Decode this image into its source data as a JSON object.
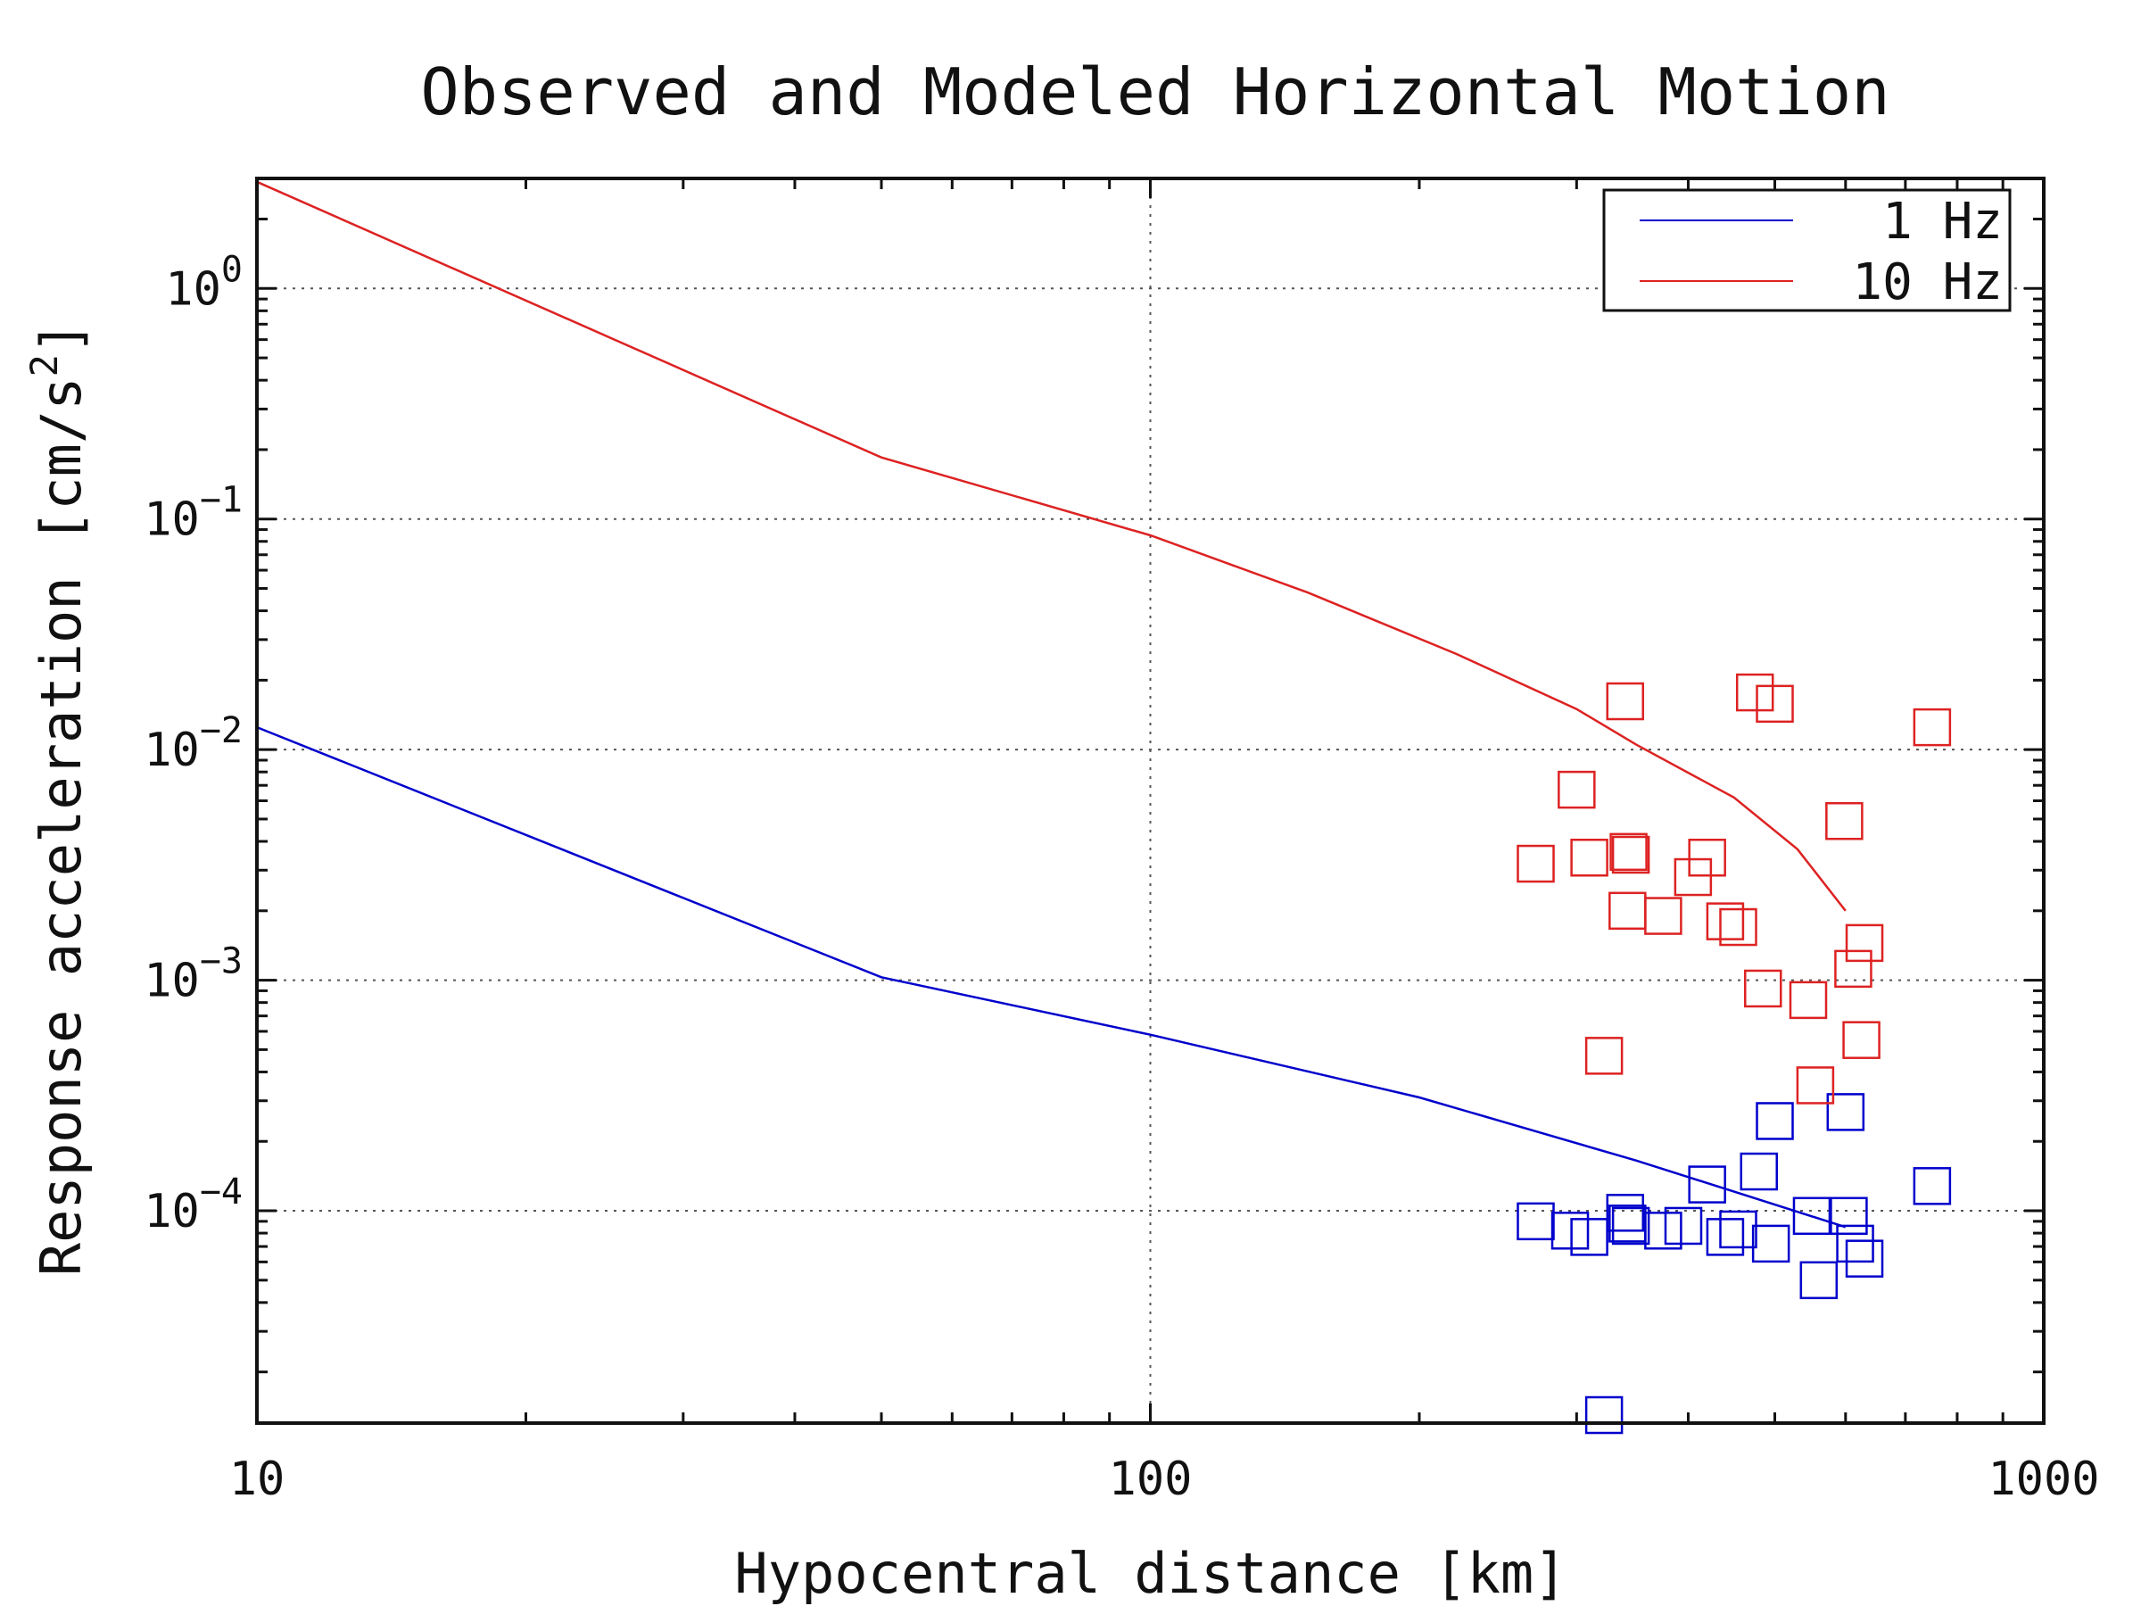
{
  "chart_data": {
    "type": "scatter",
    "title": "Observed and Modeled Horizontal Motion",
    "xlabel": "Hypocentral distance [km]",
    "ylabel_main": "Response acceleration [cm/s",
    "ylabel_sup": "2",
    "ylabel_end": "]",
    "x_scale": "log",
    "y_scale": "log",
    "xlim": [
      10,
      1000
    ],
    "ylim": [
      1.2e-05,
      3
    ],
    "x_ticks": [
      {
        "value": 10,
        "label": "10"
      },
      {
        "value": 100,
        "label": "100"
      },
      {
        "value": 1000,
        "label": "1000"
      }
    ],
    "y_ticks": [
      {
        "value": 1,
        "base": "10",
        "exp": "0"
      },
      {
        "value": 0.1,
        "base": "10",
        "exp": "−1"
      },
      {
        "value": 0.01,
        "base": "10",
        "exp": "−2"
      },
      {
        "value": 0.001,
        "base": "10",
        "exp": "−3"
      },
      {
        "value": 0.0001,
        "base": "10",
        "exp": "−4"
      }
    ],
    "grid": true,
    "legend_position": "top-right",
    "series": [
      {
        "name": "1 Hz",
        "color": "#0000cc",
        "model_line": [
          [
            10,
            0.0125
          ],
          [
            50,
            0.00103
          ],
          [
            100,
            0.00058
          ],
          [
            200,
            0.00031
          ],
          [
            350,
            0.000165
          ],
          [
            600,
            8.5e-05
          ]
        ],
        "observed": [
          [
            270,
            9e-05
          ],
          [
            295,
            8.2e-05
          ],
          [
            310,
            7.7e-05
          ],
          [
            340,
            9.8e-05
          ],
          [
            342,
            8.8e-05
          ],
          [
            345,
            8.6e-05
          ],
          [
            375,
            8.2e-05
          ],
          [
            395,
            8.6e-05
          ],
          [
            420,
            0.00013
          ],
          [
            440,
            7.7e-05
          ],
          [
            455,
            8.3e-05
          ],
          [
            480,
            0.000148
          ],
          [
            495,
            7.2e-05
          ],
          [
            500,
            0.000245
          ],
          [
            550,
            9.5e-05
          ],
          [
            560,
            5e-05
          ],
          [
            600,
            0.000268
          ],
          [
            605,
            9.5e-05
          ],
          [
            615,
            7.2e-05
          ],
          [
            630,
            6.2e-05
          ],
          [
            750,
            0.000128
          ],
          [
            322,
            1.3e-05
          ]
        ]
      },
      {
        "name": "10 Hz",
        "color": "#dd2222",
        "model_line": [
          [
            10,
            2.9
          ],
          [
            50,
            0.185
          ],
          [
            100,
            0.085
          ],
          [
            150,
            0.048
          ],
          [
            220,
            0.026
          ],
          [
            300,
            0.015
          ],
          [
            350,
            0.0105
          ],
          [
            450,
            0.0062
          ],
          [
            530,
            0.0037
          ],
          [
            600,
            0.002
          ]
        ],
        "observed": [
          [
            270,
            0.0032
          ],
          [
            300,
            0.0067
          ],
          [
            310,
            0.0034
          ],
          [
            340,
            0.0162
          ],
          [
            343,
            0.0036
          ],
          [
            345,
            0.0035
          ],
          [
            342,
            0.002
          ],
          [
            375,
            0.0019
          ],
          [
            405,
            0.0028
          ],
          [
            420,
            0.0034
          ],
          [
            440,
            0.0018
          ],
          [
            455,
            0.0017
          ],
          [
            475,
            0.0177
          ],
          [
            485,
            0.00092
          ],
          [
            500,
            0.0158
          ],
          [
            545,
            0.00082
          ],
          [
            555,
            0.00035
          ],
          [
            598,
            0.0049
          ],
          [
            612,
            0.00112
          ],
          [
            625,
            0.00055
          ],
          [
            630,
            0.00145
          ],
          [
            322,
            0.00047
          ],
          [
            750,
            0.0125
          ]
        ]
      }
    ]
  }
}
